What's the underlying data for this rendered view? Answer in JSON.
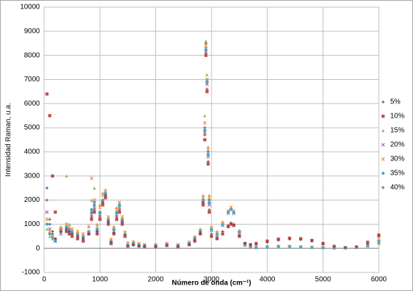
{
  "chart_data": {
    "type": "scatter",
    "x_label": "Número de onda (cm⁻¹)",
    "y_label": "Intensidad Raman, u.a.",
    "xlim": [
      0,
      6000
    ],
    "xticks": [
      0,
      1000,
      2000,
      3000,
      4000,
      5000,
      6000
    ],
    "ylim": [
      -1000,
      10000
    ],
    "yticks": [
      -1000,
      0,
      1000,
      2000,
      3000,
      4000,
      5000,
      6000,
      7000,
      8000,
      9000,
      10000
    ],
    "grid": true,
    "legend": "right",
    "x": [
      50,
      100,
      150,
      200,
      300,
      400,
      450,
      500,
      600,
      700,
      800,
      850,
      900,
      950,
      1000,
      1050,
      1100,
      1150,
      1200,
      1250,
      1300,
      1350,
      1400,
      1450,
      1500,
      1600,
      1700,
      1800,
      2000,
      2200,
      2400,
      2600,
      2700,
      2800,
      2850,
      2880,
      2900,
      2920,
      2940,
      2960,
      3000,
      3100,
      3200,
      3300,
      3350,
      3400,
      3500,
      3600,
      3700,
      3800,
      4000,
      4200,
      4400,
      4600,
      4800,
      5000,
      5200,
      5400,
      5600,
      5800,
      6000
    ],
    "series": [
      {
        "name": "5%",
        "color": "#4f81bd",
        "marker": "diamond",
        "values": [
          2500,
          1000,
          600,
          300,
          700,
          900,
          800,
          700,
          600,
          500,
          700,
          1500,
          1800,
          800,
          1500,
          2000,
          2300,
          1200,
          300,
          800,
          1500,
          1800,
          1200,
          600,
          100,
          200,
          150,
          100,
          100,
          150,
          100,
          200,
          400,
          700,
          2000,
          5000,
          8500,
          7000,
          4000,
          2000,
          800,
          600,
          1000,
          1500,
          1650,
          1500,
          700,
          150,
          50,
          30,
          60,
          80,
          80,
          60,
          40,
          30,
          20,
          20,
          50,
          150,
          300
        ]
      },
      {
        "name": "10%",
        "color": "#c0504d",
        "marker": "square",
        "values": [
          6400,
          5500,
          3000,
          1500,
          800,
          700,
          600,
          500,
          400,
          300,
          600,
          1200,
          1500,
          600,
          1200,
          1800,
          2100,
          1000,
          200,
          600,
          1200,
          1500,
          1000,
          500,
          100,
          150,
          100,
          80,
          80,
          120,
          80,
          150,
          300,
          600,
          1800,
          4500,
          8000,
          6500,
          3500,
          1500,
          500,
          400,
          600,
          900,
          1000,
          950,
          500,
          200,
          150,
          200,
          300,
          380,
          420,
          400,
          330,
          200,
          80,
          30,
          60,
          250,
          550
        ]
      },
      {
        "name": "15%",
        "color": "#9bbb59",
        "marker": "triangle",
        "values": [
          800,
          500,
          400,
          400,
          900,
          3000,
          1000,
          800,
          700,
          600,
          900,
          2000,
          2500,
          1000,
          1800,
          2300,
          2400,
          1300,
          400,
          900,
          1700,
          1900,
          1300,
          700,
          250,
          300,
          200,
          150,
          150,
          200,
          150,
          250,
          500,
          800,
          2200,
          5500,
          8600,
          7200,
          4200,
          2200,
          900,
          700,
          1100,
          1550,
          1700,
          1550,
          750,
          150,
          60,
          40,
          50,
          60,
          70,
          50,
          40,
          30,
          20,
          20,
          40,
          100,
          200
        ]
      },
      {
        "name": "20%",
        "color": "#8064a2",
        "marker": "x",
        "values": [
          1500,
          800,
          500,
          300,
          600,
          800,
          700,
          600,
          500,
          400,
          650,
          1400,
          1700,
          700,
          1400,
          1900,
          2200,
          1100,
          250,
          700,
          1400,
          1700,
          1100,
          500,
          100,
          180,
          120,
          90,
          90,
          140,
          90,
          180,
          380,
          650,
          1900,
          4800,
          8300,
          6800,
          3800,
          1800,
          750,
          550,
          950,
          1450,
          1600,
          1450,
          650,
          130,
          40,
          30,
          50,
          70,
          70,
          50,
          40,
          30,
          20,
          20,
          40,
          120,
          250
        ]
      },
      {
        "name": "30%",
        "color": "#f79646",
        "marker": "star",
        "values": [
          1200,
          700,
          500,
          400,
          800,
          1000,
          900,
          800,
          700,
          600,
          900,
          2900,
          2000,
          900,
          1700,
          2200,
          2400,
          1300,
          350,
          850,
          1600,
          1900,
          1300,
          650,
          200,
          250,
          200,
          150,
          150,
          200,
          150,
          250,
          450,
          750,
          2100,
          5200,
          8400,
          7000,
          4100,
          2100,
          850,
          650,
          1050,
          1550,
          1700,
          1550,
          700,
          140,
          50,
          30,
          60,
          80,
          80,
          60,
          40,
          30,
          20,
          20,
          60,
          200,
          400
        ]
      },
      {
        "name": "35%",
        "color": "#4bacc6",
        "marker": "circle",
        "values": [
          1000,
          600,
          450,
          350,
          700,
          850,
          750,
          650,
          550,
          450,
          700,
          1600,
          1900,
          750,
          1500,
          2000,
          2250,
          1150,
          280,
          780,
          1450,
          1750,
          1150,
          550,
          120,
          200,
          150,
          110,
          110,
          160,
          110,
          210,
          420,
          720,
          2000,
          4900,
          8200,
          6900,
          3900,
          1900,
          780,
          580,
          980,
          1500,
          1620,
          1480,
          680,
          140,
          50,
          30,
          55,
          75,
          75,
          55,
          40,
          30,
          20,
          20,
          45,
          130,
          280
        ]
      },
      {
        "name": "40%",
        "color": "#953735",
        "marker": "plus",
        "values": [
          2000,
          1200,
          700,
          400,
          700,
          800,
          700,
          600,
          500,
          400,
          600,
          1300,
          1600,
          700,
          1300,
          1900,
          2200,
          1100,
          250,
          650,
          1300,
          1600,
          1100,
          550,
          100,
          160,
          110,
          90,
          90,
          130,
          90,
          170,
          350,
          650,
          1900,
          4700,
          8100,
          6600,
          3600,
          1600,
          600,
          450,
          700,
          950,
          1050,
          1000,
          550,
          200,
          130,
          150,
          250,
          330,
          380,
          360,
          300,
          180,
          70,
          30,
          60,
          220,
          500
        ]
      }
    ]
  }
}
